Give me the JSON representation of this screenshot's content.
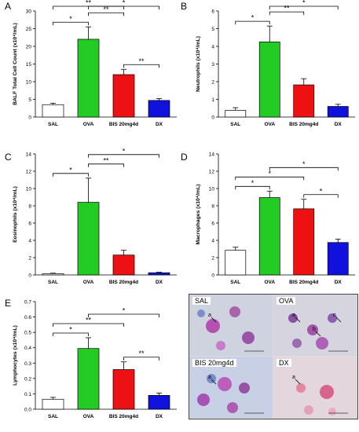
{
  "chart_data": [
    {
      "panel": "A",
      "type": "bar",
      "ylabel": "BALF Total Cell Count (x10⁴/mL)",
      "categories": [
        "SAL",
        "OVA",
        "BIS 20mg4d",
        "DX"
      ],
      "values": [
        3.5,
        22.0,
        12.0,
        4.7
      ],
      "errors": [
        0.4,
        3.5,
        1.5,
        0.5
      ],
      "colors": [
        "#ffffff",
        "#22cc22",
        "#ee1111",
        "#1111dd"
      ],
      "ylim": [
        0,
        30
      ],
      "yticks": [
        "0",
        "5",
        "10",
        "15",
        "20",
        "25",
        "30"
      ],
      "significance": [
        {
          "from": 0,
          "to": 2,
          "label": "**"
        },
        {
          "from": 1,
          "to": 3,
          "label": "*"
        },
        {
          "from": 0,
          "to": 1,
          "label": "*"
        },
        {
          "from": 1,
          "to": 2,
          "label": "**"
        },
        {
          "from": 2,
          "to": 3,
          "label": "**"
        }
      ]
    },
    {
      "panel": "B",
      "type": "bar",
      "ylabel": "Neutrophils (x10⁴/mL)",
      "categories": [
        "SAL",
        "OVA",
        "BIS 20mg4d",
        "DX"
      ],
      "values": [
        0.38,
        4.25,
        1.82,
        0.6
      ],
      "errors": [
        0.15,
        0.9,
        0.35,
        0.12
      ],
      "colors": [
        "#ffffff",
        "#22cc22",
        "#ee1111",
        "#1111dd"
      ],
      "ylim": [
        0,
        6
      ],
      "yticks": [
        "0",
        "1",
        "2",
        "3",
        "4",
        "5",
        "6"
      ],
      "significance": [
        {
          "from": 1,
          "to": 3,
          "label": "*"
        },
        {
          "from": 0,
          "to": 1,
          "label": "*"
        },
        {
          "from": 1,
          "to": 2,
          "label": "**"
        }
      ]
    },
    {
      "panel": "C",
      "type": "bar",
      "ylabel": "Eosinophils (x10⁴/mL)",
      "categories": [
        "SAL",
        "OVA",
        "BIS 20mg4d",
        "DX"
      ],
      "values": [
        0.15,
        8.4,
        2.3,
        0.25
      ],
      "errors": [
        0.05,
        2.8,
        0.55,
        0.06
      ],
      "colors": [
        "#ffffff",
        "#22cc22",
        "#ee1111",
        "#1111dd"
      ],
      "ylim": [
        0,
        14
      ],
      "yticks": [
        "0",
        "2",
        "4",
        "6",
        "8",
        "10",
        "12",
        "14"
      ],
      "significance": [
        {
          "from": 1,
          "to": 3,
          "label": "*"
        },
        {
          "from": 0,
          "to": 1,
          "label": "*"
        },
        {
          "from": 1,
          "to": 2,
          "label": "**"
        }
      ]
    },
    {
      "panel": "D",
      "type": "bar",
      "ylabel": "Macrophages (x10⁴/mL)",
      "categories": [
        "SAL",
        "OVA",
        "BIS 20mg4d",
        "DX"
      ],
      "values": [
        2.85,
        8.95,
        7.65,
        3.75
      ],
      "errors": [
        0.35,
        0.75,
        1.1,
        0.4
      ],
      "colors": [
        "#ffffff",
        "#22cc22",
        "#ee1111",
        "#1111dd"
      ],
      "ylim": [
        0,
        14
      ],
      "yticks": [
        "0",
        "2",
        "4",
        "6",
        "8",
        "10",
        "12",
        "14"
      ],
      "significance": [
        {
          "from": 0,
          "to": 2,
          "label": "*"
        },
        {
          "from": 1,
          "to": 3,
          "label": "*"
        },
        {
          "from": 0,
          "to": 1,
          "label": "*"
        },
        {
          "from": 2,
          "to": 3,
          "label": "*"
        }
      ]
    },
    {
      "panel": "E",
      "type": "bar",
      "ylabel": "Lymphocytes (x10⁴/mL)",
      "categories": [
        "SAL",
        "OVA",
        "BIS 20mg4d",
        "DX"
      ],
      "values": [
        0.065,
        0.395,
        0.258,
        0.09
      ],
      "errors": [
        0.012,
        0.07,
        0.05,
        0.015
      ],
      "colors": [
        "#ffffff",
        "#22cc22",
        "#ee1111",
        "#1111dd"
      ],
      "ylim": [
        0,
        0.7
      ],
      "yticks": [
        "0.0",
        "0.1",
        "0.2",
        "0.3",
        "0.4",
        "0.5",
        "0.6",
        "0.7"
      ],
      "significance": [
        {
          "from": 0,
          "to": 2,
          "label": "**"
        },
        {
          "from": 1,
          "to": 3,
          "label": "*"
        },
        {
          "from": 0,
          "to": 1,
          "label": "*"
        },
        {
          "from": 2,
          "to": 3,
          "label": "**"
        }
      ]
    }
  ],
  "micrographs": [
    {
      "label": "SAL",
      "cell_labels": [
        "a"
      ]
    },
    {
      "label": "OVA",
      "cell_labels": [
        "a",
        "b",
        "c"
      ]
    },
    {
      "label": "BIS 20mg4d",
      "cell_labels": [
        "a"
      ]
    },
    {
      "label": "DX",
      "cell_labels": [
        "a"
      ]
    }
  ]
}
